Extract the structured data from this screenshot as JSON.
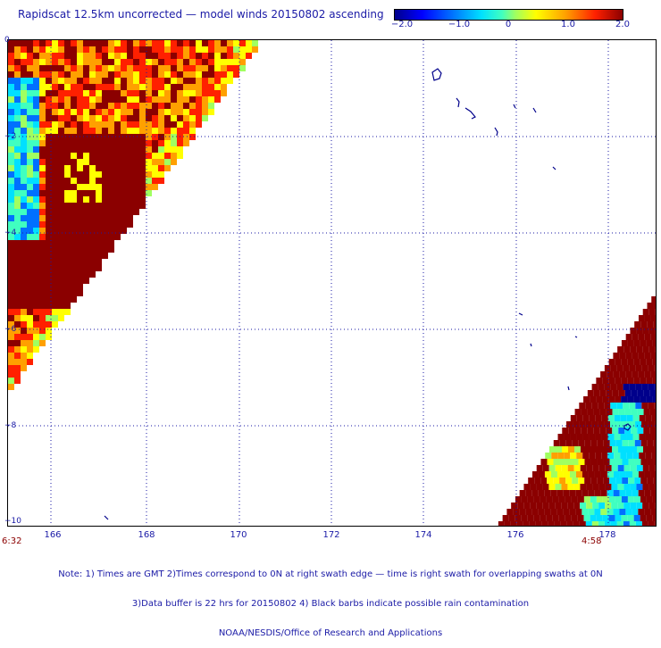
{
  "title": "Rapidscat 12.5km uncorrected — model winds 20150802 ascending",
  "colorbar": {
    "ticks": [
      "−2.0",
      "−1.0",
      "0",
      "1.0",
      "2.0"
    ],
    "colors": [
      "#00008b",
      "#0000ff",
      "#0070ff",
      "#00e0ff",
      "#40ffc0",
      "#a0ff60",
      "#ffff00",
      "#ffa000",
      "#ff2000",
      "#8b0000"
    ]
  },
  "axes": {
    "lat_labels": [
      "0",
      "−2",
      "−4",
      "−6",
      "−8",
      "−10"
    ],
    "lon_labels": [
      "166",
      "168",
      "170",
      "172",
      "174",
      "176",
      "178"
    ]
  },
  "times": {
    "left": "6:32",
    "right": "4:58"
  },
  "notes": {
    "line1": "Note: 1) Times are GMT 2)Times correspond to 0N at right swath edge — time is right swath for overlapping swaths at 0N",
    "line2": "3)Data buffer is 22 hrs for 20150802 4) Black barbs indicate possible rain contamination",
    "line3": "NOAA/NESDIS/Office of Research and Applications"
  }
}
